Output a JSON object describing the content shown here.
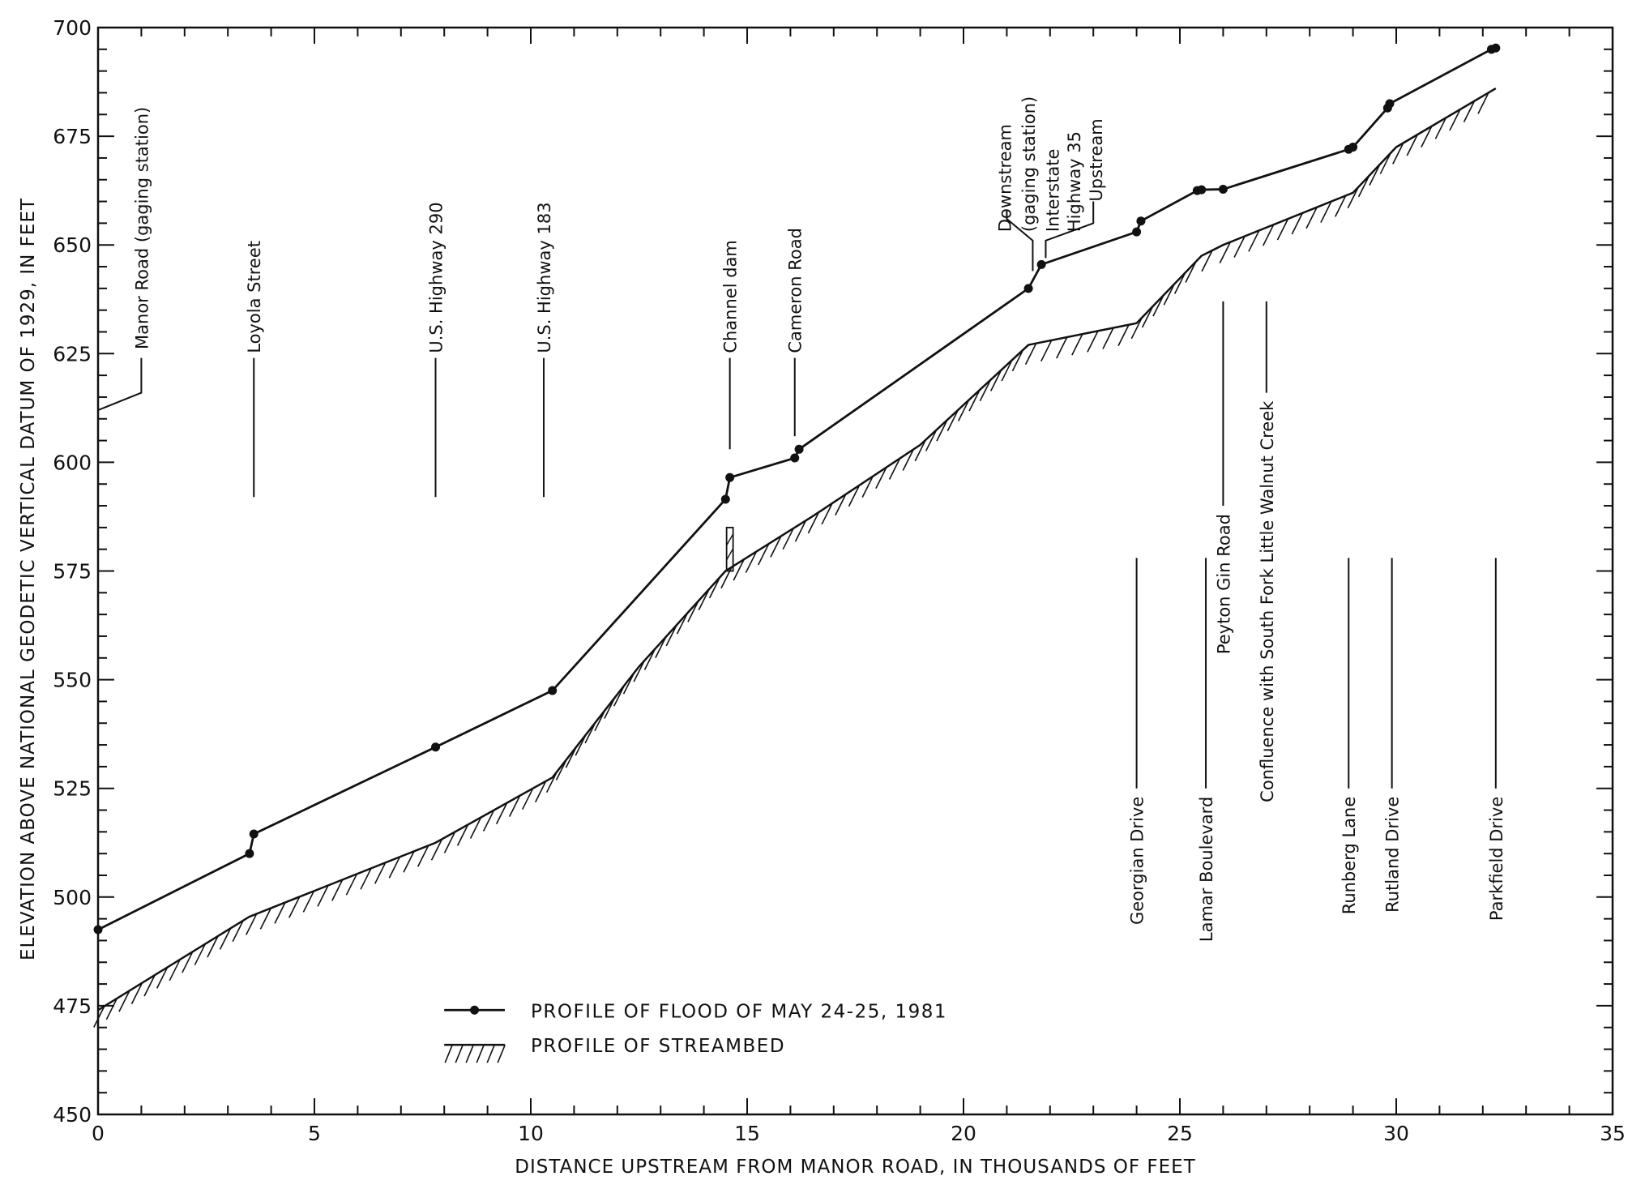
{
  "chart_data": {
    "type": "line",
    "xlabel": "DISTANCE UPSTREAM FROM MANOR ROAD, IN THOUSANDS OF FEET",
    "ylabel": "ELEVATION ABOVE NATIONAL GEODETIC VERTICAL DATUM OF 1929, IN FEET",
    "xlim": [
      0,
      35
    ],
    "ylim": [
      450,
      700
    ],
    "x_ticks": [
      0,
      5,
      10,
      15,
      20,
      25,
      30,
      35
    ],
    "y_ticks": [
      450,
      475,
      500,
      525,
      550,
      575,
      600,
      625,
      650,
      675,
      700
    ],
    "grid": false,
    "legend_position": "bottom-left",
    "series": [
      {
        "name": "PROFILE OF FLOOD OF MAY 24-25, 1981",
        "style": "line-with-points",
        "points": [
          [
            0,
            492.5
          ],
          [
            3.5,
            510
          ],
          [
            3.6,
            514.5
          ],
          [
            7.8,
            534.5
          ],
          [
            10.5,
            547.5
          ],
          [
            14.5,
            591.5
          ],
          [
            14.6,
            596.5
          ],
          [
            16.1,
            601
          ],
          [
            16.2,
            603
          ],
          [
            21.5,
            640
          ],
          [
            21.8,
            645.5
          ],
          [
            24.0,
            653
          ],
          [
            24.1,
            655.5
          ],
          [
            25.4,
            662.5
          ],
          [
            25.5,
            662.7
          ],
          [
            26.0,
            662.8
          ],
          [
            28.9,
            672
          ],
          [
            29.0,
            672.5
          ],
          [
            29.8,
            681.5
          ],
          [
            29.85,
            682.5
          ],
          [
            32.2,
            695
          ],
          [
            32.3,
            695.3
          ]
        ]
      },
      {
        "name": "PROFILE OF STREAMBED",
        "style": "hatched",
        "points": [
          [
            0,
            474
          ],
          [
            3.5,
            495.5
          ],
          [
            7.8,
            512.5
          ],
          [
            10.5,
            527.5
          ],
          [
            12.5,
            553
          ],
          [
            14.5,
            575
          ],
          [
            16.5,
            587.5
          ],
          [
            19,
            604
          ],
          [
            21.5,
            627
          ],
          [
            24,
            632
          ],
          [
            25.5,
            647.5
          ],
          [
            26,
            650
          ],
          [
            29,
            662
          ],
          [
            30,
            672.5
          ],
          [
            32.3,
            686
          ]
        ]
      }
    ],
    "annotations": [
      {
        "label": "Manor Road (gaging station)",
        "x": 0,
        "side": "top",
        "ystart": 612,
        "yend": 690
      },
      {
        "label": "Loyola Street",
        "x": 3.6,
        "side": "top",
        "ystart": 592,
        "yend": 624
      },
      {
        "label": "U.S. Highway 290",
        "x": 7.8,
        "side": "top",
        "ystart": 592,
        "yend": 624
      },
      {
        "label": "U.S. Highway 183",
        "x": 10.3,
        "side": "top",
        "ystart": 592,
        "yend": 624
      },
      {
        "label": "Channel dam",
        "x": 14.6,
        "side": "top",
        "ystart": 603,
        "yend": 624
      },
      {
        "label": "Cameron Road",
        "x": 16.1,
        "side": "top",
        "ystart": 606,
        "yend": 624
      },
      {
        "label": "Georgian Drive",
        "x": 24.0,
        "side": "bottom",
        "ystart": 525,
        "yend": 578
      },
      {
        "label": "Lamar Boulevard",
        "x": 25.6,
        "side": "bottom",
        "ystart": 525,
        "yend": 578
      },
      {
        "label": "Peyton Gin Road",
        "x": 26.0,
        "side": "bottom",
        "ystart": 590,
        "yend": 637
      },
      {
        "label": "Confluence with South Fork Little Walnut Creek",
        "x": 27.0,
        "side": "bottom",
        "ystart": 616,
        "yend": 637
      },
      {
        "label": "Runberg Lane",
        "x": 28.9,
        "side": "bottom",
        "ystart": 525,
        "yend": 578
      },
      {
        "label": "Rutland Drive",
        "x": 29.9,
        "side": "bottom",
        "ystart": 525,
        "yend": 578
      },
      {
        "label": "Parkfield Drive",
        "x": 32.3,
        "side": "bottom",
        "ystart": 525,
        "yend": 578
      }
    ],
    "interstate_note": {
      "labels": [
        "Downstream",
        "(gaging station)",
        "Interstate",
        "Highway 35",
        "Upstream"
      ]
    }
  }
}
